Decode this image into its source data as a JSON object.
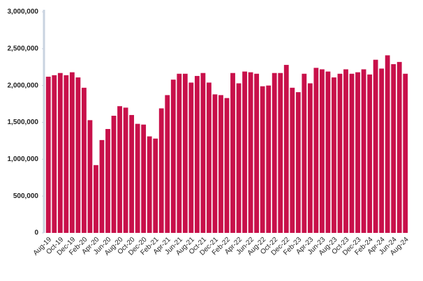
{
  "chart_data": {
    "type": "bar",
    "color": "#c8104a",
    "categories": [
      "Aug-19",
      null,
      "Oct-19",
      null,
      "Dec-19",
      null,
      "Feb-20",
      null,
      "Apr-20",
      null,
      "Jun-20",
      null,
      "Aug-20",
      null,
      "Oct-20",
      null,
      "Dec-20",
      null,
      "Feb-21",
      null,
      "Apr-21",
      null,
      "Jun-21",
      null,
      "Aug-21",
      null,
      "Oct-21",
      null,
      "Dec-21",
      null,
      "Feb-22",
      null,
      "Apr-22",
      null,
      "Jun-22",
      null,
      "Aug-22",
      null,
      "Oct-22",
      null,
      "Dec-22",
      null,
      "Feb-23",
      null,
      "Apr-23",
      null,
      "Jun-23",
      null,
      "Aug-23",
      null,
      "Oct-23",
      null,
      "Dec-23",
      null,
      "Feb-24",
      null,
      "Apr-24",
      null,
      "Jun-24",
      null,
      "Aug-24"
    ],
    "values": [
      2120000,
      2140000,
      2170000,
      2140000,
      2180000,
      2110000,
      1970000,
      1530000,
      920000,
      1260000,
      1410000,
      1590000,
      1720000,
      1700000,
      1600000,
      1480000,
      1470000,
      1310000,
      1280000,
      1690000,
      1870000,
      2080000,
      2160000,
      2160000,
      2040000,
      2130000,
      2170000,
      2040000,
      1880000,
      1870000,
      1830000,
      2170000,
      2030000,
      2190000,
      2180000,
      2160000,
      1990000,
      2000000,
      2170000,
      2170000,
      2280000,
      1970000,
      1910000,
      2160000,
      2030000,
      2240000,
      2220000,
      2190000,
      2110000,
      2160000,
      2220000,
      2160000,
      2180000,
      2220000,
      2150000,
      2350000,
      2230000,
      2410000,
      2290000,
      2320000,
      2160000
    ],
    "ylim": [
      0,
      3000000
    ],
    "yticks": [
      0,
      {
        "value": 500000,
        "label": "500,000"
      },
      {
        "value": 1000000,
        "label": "1,000,000"
      },
      {
        "value": 1500000,
        "label": "1,500,000"
      },
      {
        "value": 2000000,
        "label": "2,000,000"
      },
      {
        "value": 2500000,
        "label": "2,500,000"
      },
      {
        "value": 3000000,
        "label": "3,000,000"
      }
    ],
    "grid": false
  }
}
